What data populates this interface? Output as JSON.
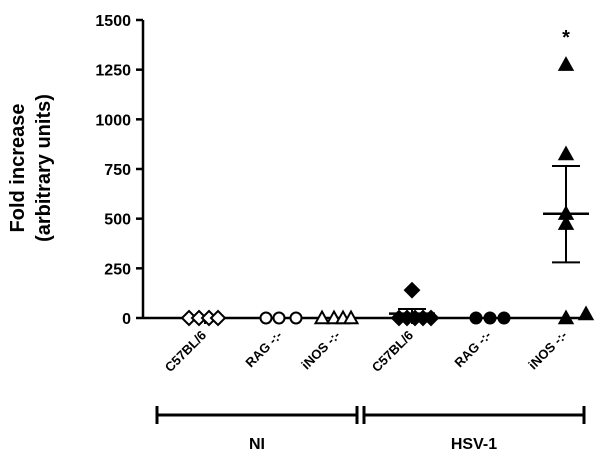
{
  "chart_data": {
    "type": "scatter",
    "ylabel_line1": "Fold increase",
    "ylabel_line2": "(arbitrary units)",
    "ylim": [
      0,
      1500
    ],
    "yticks": [
      0,
      250,
      500,
      750,
      1000,
      1250,
      1500
    ],
    "ytick_labels": [
      "0",
      "250",
      "500",
      "750",
      "1000",
      "1250",
      "1500"
    ],
    "categories": [
      "C57BL/6",
      "RAG -:-",
      "iNOS -:-",
      "C57BL/6",
      "RAG -:-",
      "iNOS -:-"
    ],
    "groups": [
      {
        "label": "NI",
        "category_indices": [
          0,
          1,
          2
        ]
      },
      {
        "label": "HSV-1",
        "category_indices": [
          3,
          4,
          5
        ]
      }
    ],
    "series": [
      {
        "marker": "diamond-open",
        "values": [
          0,
          0,
          0,
          0
        ]
      },
      {
        "marker": "circle-open",
        "values": [
          0,
          0,
          0
        ]
      },
      {
        "marker": "triangle-open",
        "values": [
          0,
          0,
          0,
          0
        ]
      },
      {
        "marker": "diamond-filled",
        "values": [
          140,
          0,
          0,
          0,
          0,
          0
        ]
      },
      {
        "marker": "circle-filled",
        "values": [
          0,
          0,
          0
        ]
      },
      {
        "marker": "triangle-filled",
        "values": [
          1275,
          825,
          525,
          475,
          0,
          20
        ]
      }
    ],
    "summary": [
      null,
      null,
      null,
      {
        "mean": 22,
        "sem_low": 0,
        "sem_high": 45
      },
      null,
      {
        "mean": 525,
        "sem_low": 280,
        "sem_high": 765
      }
    ],
    "annotations": [
      {
        "category_index": 5,
        "text": "*",
        "value": 1420
      }
    ],
    "colors": {
      "axis": "#000000",
      "marker": "#000000"
    }
  }
}
